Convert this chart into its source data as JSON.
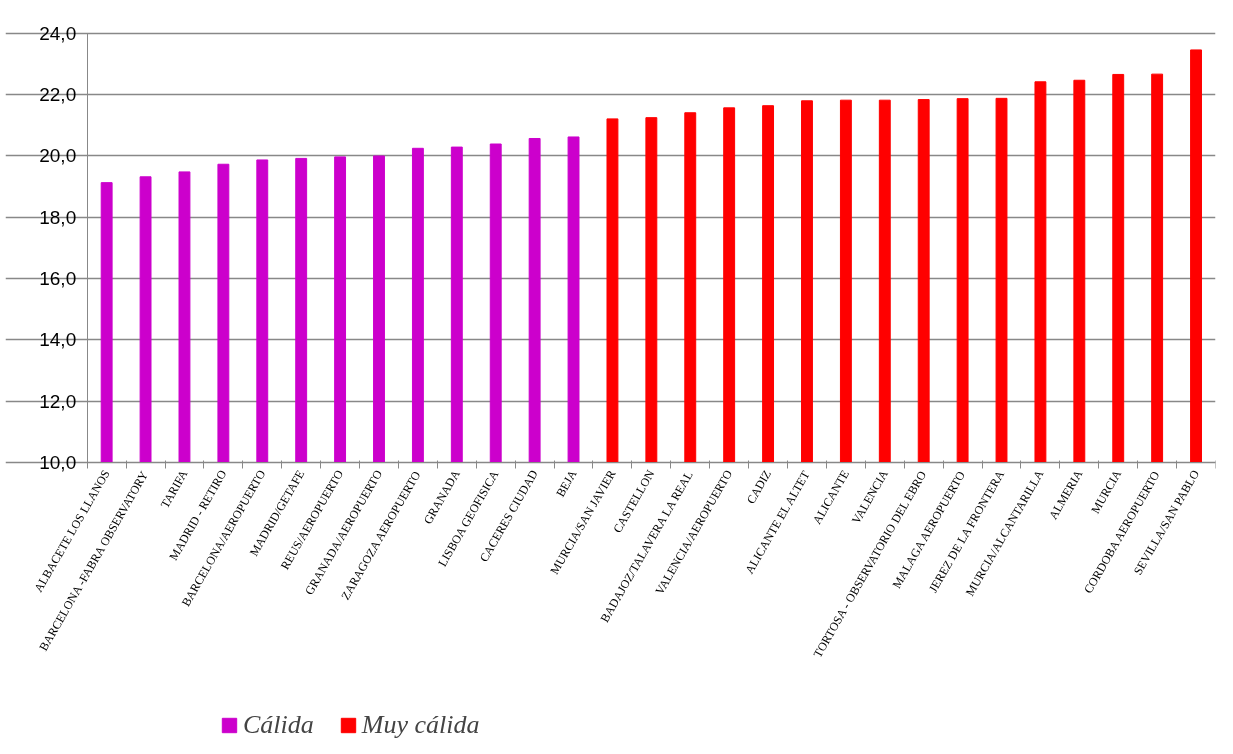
{
  "chart_data": {
    "type": "bar",
    "categories": [
      "ALBACETE LOS LLANOS",
      "BARCELONA -FABRA OBSERVATORY",
      "TARIFA",
      "MADRID - RETIRO",
      "BARCELONA/AEROPUERTO",
      "MADRID/GETAFE",
      "REUS/AEROPUERTO",
      "GRANADA/AEROPUERTO",
      "ZARAGOZA AEROPUERTO",
      "GRANADA",
      "LISBOA GEOFISICA",
      "CACERES CIUDAD",
      "BEJA",
      "MURCIA/SAN JAVIER",
      "CASTELLON",
      "BADAJOZ/TALAVERA LA REAL",
      "VALENCIA/AEROPUERTO",
      "CADIZ",
      "ALICANTE EL ALTET",
      "ALICANTE",
      "VALENCIA",
      "TORTOSA - OBSERVATORIO DEL EBRO",
      "MALAGA AEROPUERTO",
      "JEREZ DE LA FRONTERA",
      "MURCIA/ALCANTARILLA",
      "ALMERIA",
      "MURCIA",
      "CORDOBA AEROPUERTO",
      "SEVILLA/SAN PABLO"
    ],
    "series": [
      {
        "name": "Cálida",
        "color": "#cc00cc",
        "values": [
          19.13,
          19.32,
          19.48,
          19.73,
          19.87,
          19.92,
          19.97,
          20.0,
          20.25,
          20.29,
          20.39,
          20.57,
          20.62,
          null,
          null,
          null,
          null,
          null,
          null,
          null,
          null,
          null,
          null,
          null,
          null,
          null,
          null,
          null,
          null
        ]
      },
      {
        "name": "Muy cálida",
        "color": "#ff0000",
        "values": [
          null,
          null,
          null,
          null,
          null,
          null,
          null,
          null,
          null,
          null,
          null,
          null,
          null,
          21.21,
          21.25,
          21.41,
          21.57,
          21.64,
          21.8,
          21.82,
          21.82,
          21.84,
          21.87,
          21.88,
          22.42,
          22.47,
          22.66,
          22.67,
          23.46
        ]
      }
    ],
    "ylim": [
      10,
      24
    ],
    "yticks": [
      {
        "value": 10,
        "label": "10,0"
      },
      {
        "value": 12,
        "label": "12,0"
      },
      {
        "value": 14,
        "label": "14,0"
      },
      {
        "value": 16,
        "label": "16,0"
      },
      {
        "value": 18,
        "label": "18,0"
      },
      {
        "value": 20,
        "label": "20,0"
      },
      {
        "value": 22,
        "label": "22,0"
      },
      {
        "value": 24,
        "label": "24,0"
      }
    ],
    "grid": "y",
    "legend": "bottom"
  }
}
